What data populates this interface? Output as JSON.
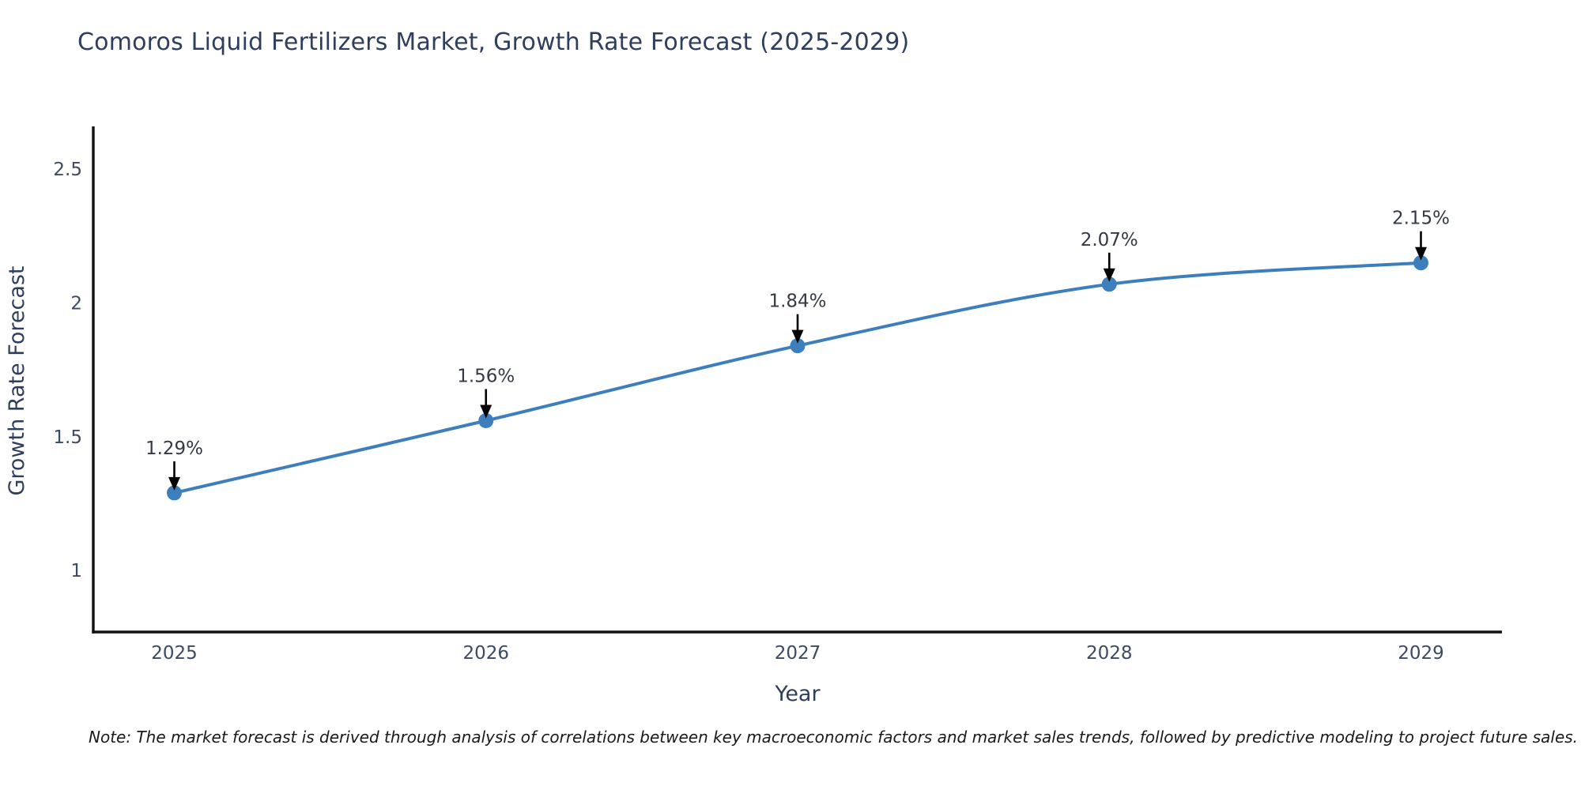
{
  "title": "Comoros Liquid Fertilizers Market, Growth Rate Forecast (2025-2029)",
  "note": "Note: The market forecast is derived through analysis of correlations between key macroeconomic factors and market sales trends, followed by predictive modeling to project future sales.",
  "chart_data": {
    "type": "line",
    "title": "Comoros Liquid Fertilizers Market, Growth Rate Forecast (2025-2029)",
    "x": [
      2025,
      2026,
      2027,
      2028,
      2029
    ],
    "categories": [
      "2025",
      "2026",
      "2027",
      "2028",
      "2029"
    ],
    "values": [
      1.29,
      1.56,
      1.84,
      2.07,
      2.15
    ],
    "point_labels": [
      "1.29%",
      "1.56%",
      "1.84%",
      "2.07%",
      "2.15%"
    ],
    "xlabel": "Year",
    "ylabel": "Growth Rate Forecast",
    "yticks": [
      1,
      1.5,
      2,
      2.5
    ],
    "ytick_labels": [
      "1",
      "1.5",
      "2",
      "2.5"
    ],
    "xlim": [
      2024.74,
      2029.26
    ],
    "ylim": [
      0.77,
      2.66
    ],
    "line_shape": "spline",
    "line_color": "#3d7ebd",
    "marker_color": "#3d7ebd",
    "annotation_arrow_color": "#000000",
    "grid": false,
    "legend": "none"
  },
  "colors": {
    "background": "#ffffff",
    "title-text": "#2f3e5c",
    "tick-text": "#3c4a63",
    "annotation-text": "#333a45",
    "axis-line": "#111111",
    "note-text": "#1a1a1a",
    "accent": "#3d7ebd"
  }
}
